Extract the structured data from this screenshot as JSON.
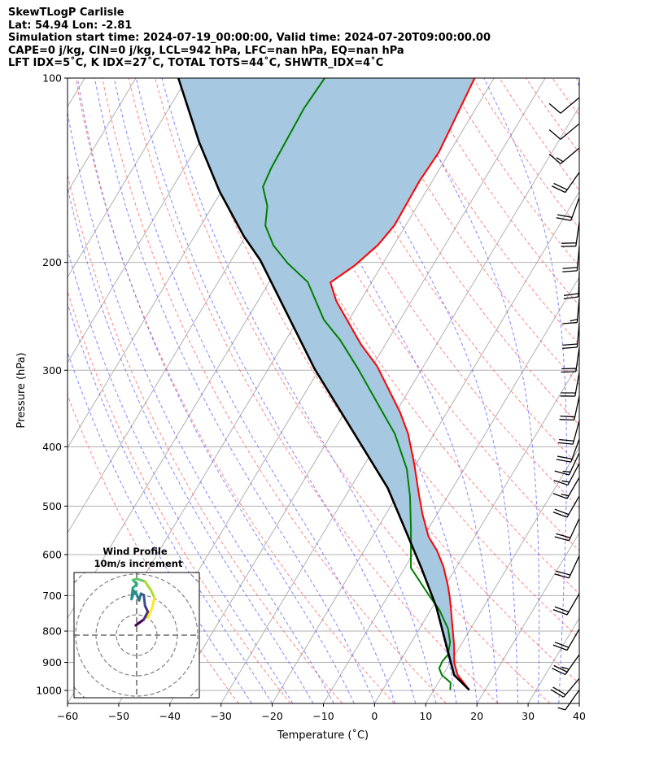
{
  "titles": [
    "SkewTLogP Carlisle",
    "Lat: 54.94   Lon: -2.81",
    "Simulation start time: 2024-07-19_00:00:00, Valid time: 2024-07-20T09:00:00.00",
    "CAPE=0 j/kg, CIN=0 j/kg, LCL=942 hPa, LFC=nan hPa, EQ=nan hPa",
    "LFT IDX=5$^\\circ$C, K IDX=27$^\\circ$C, TOTAL TOTS=44$^\\circ$C, SHWTR_IDX=4$^\\circ$C"
  ],
  "titles_display": [
    "SkewTLogP Carlisle",
    "Lat: 54.94   Lon: -2.81",
    "Simulation start time: 2024-07-19_00:00:00, Valid time: 2024-07-20T09:00:00.00",
    "CAPE=0 j/kg, CIN=0 j/kg, LCL=942 hPa, LFC=nan hPa, EQ=nan hPa",
    "LFT IDX=5˚C, K IDX=27˚C, TOTAL TOTS=44˚C, SHWTR_IDX=4˚C"
  ],
  "chart_data": {
    "type": "line",
    "subtype": "skew-t log-p",
    "xlabel": "Temperature (˚C)",
    "ylabel": "Pressure (hPa)",
    "xlim": [
      -60,
      40
    ],
    "ylim": [
      1050,
      100
    ],
    "xticks": [
      "−60",
      "−50",
      "−40",
      "−30",
      "−20",
      "−10",
      "0",
      "10",
      "20",
      "30",
      "40"
    ],
    "xtick_values": [
      -60,
      -50,
      -40,
      -30,
      -20,
      -10,
      0,
      10,
      20,
      30,
      40
    ],
    "yticks": [
      "100",
      "200",
      "300",
      "400",
      "500",
      "600",
      "700",
      "800",
      "900",
      "1000"
    ],
    "ytick_values": [
      100,
      200,
      300,
      400,
      500,
      600,
      700,
      800,
      900,
      1000
    ],
    "grid": true,
    "colors": {
      "temperature": "#ff0000",
      "dewpoint": "#008000",
      "parcel": "#000000",
      "shade": "#a6c8e0",
      "dry_adiabat": "#ff6666",
      "moist_adiabat": "#6666ff",
      "isotherm": "#b0b0b0"
    },
    "series": [
      {
        "name": "temperature",
        "pressure": [
          997.9,
          943.6,
          901.4,
          843.5,
          731.4,
          702.0,
          674.1,
          627.7,
          590.4,
          561.1,
          517.1,
          481.6,
          426.1,
          380.8,
          351.2,
          295.3,
          272.1,
          231.2,
          215.7,
          202.0,
          187.2,
          173.8,
          147.6,
          132.0,
          100
        ],
        "temperature": [
          16.9,
          12.9,
          10.8,
          8.7,
          3.6,
          2.1,
          0.5,
          -2.6,
          -5.8,
          -9.0,
          -12.7,
          -15.6,
          -20.4,
          -25.1,
          -29.2,
          -39.1,
          -44.8,
          -54.7,
          -58.0,
          -55.2,
          -53.1,
          -52.2,
          -52.5,
          -52.1,
          -53.8
        ]
      },
      {
        "name": "dewpoint",
        "pressure": [
          997.9,
          971,
          943.6,
          920,
          896.7,
          874,
          835,
          793,
          738.8,
          702,
          630.8,
          544.2,
          481.6,
          434.9,
          380.8,
          356.6,
          298.3,
          268,
          248.2,
          215.3,
          200.4,
          187.6,
          174.1,
          161.8,
          150.6,
          140.3,
          112.1,
          100
        ],
        "temperature": [
          13.2,
          12.4,
          9.8,
          8.5,
          8.3,
          8.6,
          7.6,
          5.6,
          1.7,
          -1.8,
          -8.8,
          -13.4,
          -17.4,
          -21.2,
          -27.7,
          -31.7,
          -42.5,
          -49.3,
          -54.9,
          -62.5,
          -68.7,
          -73.5,
          -77.4,
          -79.3,
          -82.4,
          -83.0,
          -83.6,
          -83.1
        ]
      },
      {
        "name": "parcel",
        "pressure": [
          997.9,
          943.6,
          731.4,
          634,
          467.1,
          298.3,
          198.4,
          181.1,
          153,
          127.3,
          100
        ],
        "temperature": [
          16.9,
          12.2,
          0.8,
          -6.5,
          -22.7,
          -51.0,
          -74.3,
          -80.4,
          -90.4,
          -100.1,
          -111.7
        ]
      }
    ],
    "wind_barbs": {
      "units": "kt",
      "pressure": [
        107.6,
        118.7,
        130.1,
        142.6,
        156.7,
        171.8,
        188.3,
        207.7,
        228.8,
        251.1,
        275.4,
        302.1,
        330.7,
        362.5,
        388.7,
        409.3,
        426,
        449,
        481.6,
        524,
        603,
        695,
        794,
        874,
        956,
        998
      ],
      "direction": [
        230,
        230,
        230,
        215,
        200,
        188,
        185,
        182,
        185,
        185,
        188,
        190,
        192,
        195,
        200,
        205,
        208,
        210,
        210,
        205,
        205,
        210,
        210,
        215,
        220,
        215
      ],
      "speed": [
        10,
        10,
        15,
        20,
        20,
        20,
        20,
        20,
        15,
        20,
        20,
        20,
        20,
        20,
        20,
        15,
        15,
        15,
        20,
        20,
        20,
        20,
        20,
        25,
        20,
        5
      ]
    },
    "hodograph": {
      "title": "Wind Profile",
      "subtitle": "10m/s increment",
      "ring_increment_ms": 10,
      "u": [
        -0.5,
        1.7,
        3.5,
        5.5,
        4.1,
        3.5,
        2.1,
        1.2,
        0.1,
        -1.2,
        -2.5,
        -1.9,
        0.1,
        -1.9,
        0.1,
        4.1,
        6.8,
        8.8,
        7.5,
        5.5
      ],
      "v": [
        4.8,
        6.4,
        7.7,
        11.5,
        14.4,
        19.7,
        20.4,
        17.1,
        19.7,
        21.7,
        17.7,
        23.2,
        25.1,
        27.1,
        27.7,
        26.4,
        22.4,
        18.4,
        13.1,
        8.4
      ],
      "colormap": "viridis"
    }
  }
}
